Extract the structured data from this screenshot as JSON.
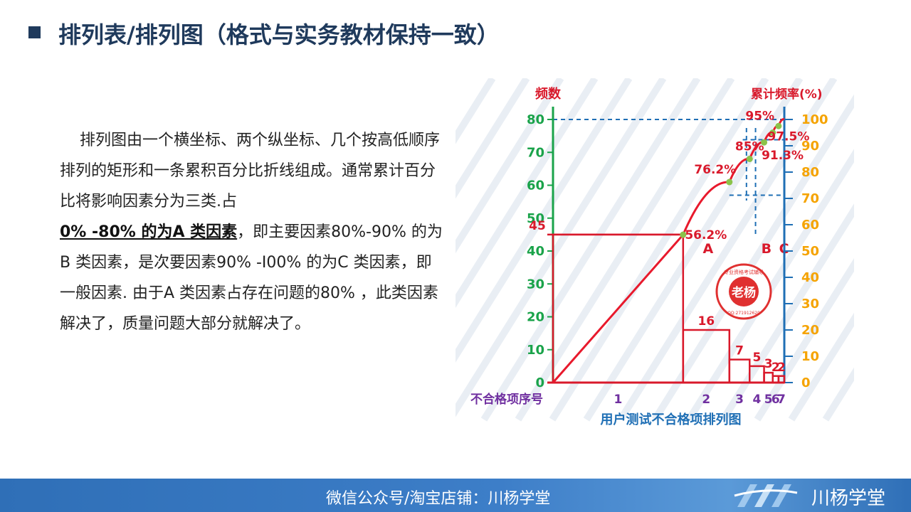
{
  "page": {
    "title": "排列表/排列图（格式与实务教材保持一致）"
  },
  "body": {
    "line1": "排列图由一个横坐标、两个纵坐标、几个按高低顺序排列的矩形和一条累积百分比折线组成。通常累计百分比将影响因素分为三类.占",
    "emphasis": "0% -80% 的为A 类因素",
    "line2": "，即主要因素80%-90% 的为B 类因素，是次要因素90% -I00% 的为C 类因素，即一般因素. 由于A 类因素占存在问题的80% ，此类因素解决了，质量问题大部分就解决了。"
  },
  "footer": {
    "text": "微信公众号/淘宝店铺：川杨学堂",
    "brand": "川杨学堂"
  },
  "colors": {
    "title": "#1f3a5c",
    "axis_left": "#1aa34a",
    "axis_right": "#f5a300",
    "line": "#e8192c",
    "bar": "#d9192b",
    "guide": "#1f6fb5",
    "xlabel": "#7030a0",
    "footer": "#3d7ec8"
  },
  "stamp": {
    "text": "老杨",
    "ring_text": "专业资格考试辅导",
    "id_text": "QQ:271912620"
  },
  "chart_data": {
    "type": "bar",
    "title": "用户测试不合格项排列图",
    "xlabel": "不合格项序号",
    "ylabel": "频数",
    "y2label": "累计频率(%)",
    "categories": [
      "1",
      "2",
      "3",
      "4",
      "5",
      "6",
      "7"
    ],
    "values": [
      45,
      16,
      7,
      5,
      3,
      2,
      2
    ],
    "ylim": [
      0,
      80
    ],
    "yticks": [
      0,
      10,
      20,
      30,
      40,
      50,
      60,
      70,
      80
    ],
    "y2lim": [
      0,
      100
    ],
    "y2ticks": [
      0,
      10,
      20,
      30,
      40,
      50,
      60,
      70,
      80,
      90,
      100
    ],
    "cumulative": {
      "points": [
        56.2,
        76.2,
        85,
        91.3,
        95,
        97.5,
        100
      ],
      "labels": [
        "56.2%",
        "76.2%",
        "85%",
        "91.3%",
        "95%",
        "97.5%",
        ""
      ]
    },
    "zones": [
      "A",
      "B",
      "C"
    ],
    "grid": false
  }
}
